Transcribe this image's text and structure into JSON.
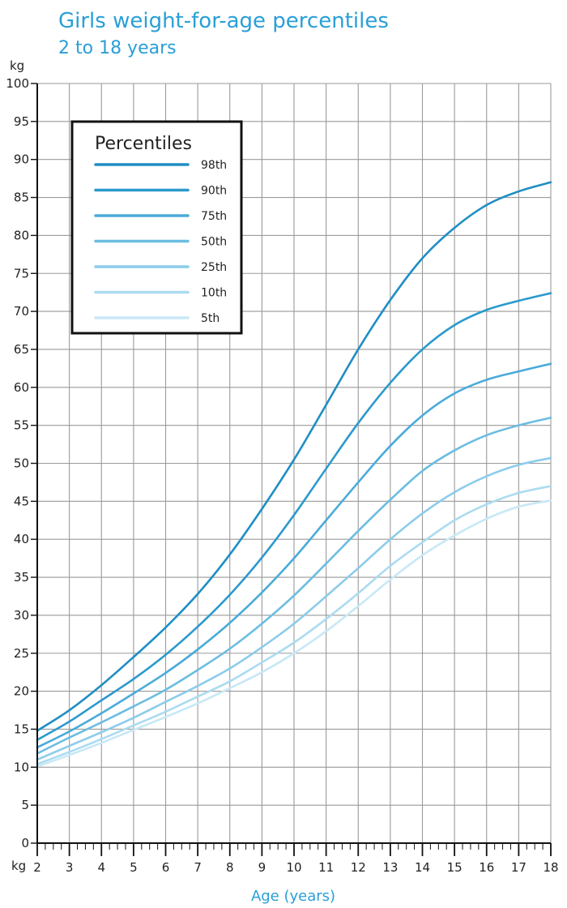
{
  "chart_data": {
    "type": "line",
    "title": "Girls weight-for-age percentiles",
    "subtitle": "2 to 18 years",
    "xlabel": "Age (years)",
    "ylabel": "kg",
    "ylabel_bottom": "kg",
    "xlim": [
      2,
      18
    ],
    "ylim": [
      0,
      100
    ],
    "x_ticks": [
      2,
      3,
      4,
      5,
      6,
      7,
      8,
      9,
      10,
      11,
      12,
      13,
      14,
      15,
      16,
      17,
      18
    ],
    "y_ticks": [
      0,
      5,
      10,
      15,
      20,
      25,
      30,
      35,
      40,
      45,
      50,
      55,
      60,
      65,
      70,
      75,
      80,
      85,
      90,
      95,
      100
    ],
    "grid": true,
    "legend": {
      "title": "Percentiles",
      "position": "top-left"
    },
    "x": [
      2,
      3,
      4,
      5,
      6,
      7,
      8,
      9,
      10,
      11,
      12,
      13,
      14,
      15,
      16,
      17,
      18
    ],
    "series": [
      {
        "name": "98th",
        "color": "#1f8ec4",
        "values": [
          14.8,
          17.5,
          20.8,
          24.5,
          28.4,
          32.8,
          38.0,
          44.0,
          50.5,
          57.7,
          65.0,
          71.5,
          77.0,
          81.0,
          84.0,
          85.8,
          87.0
        ]
      },
      {
        "name": "90th",
        "color": "#2b99cd",
        "values": [
          13.6,
          16.0,
          18.8,
          21.6,
          24.8,
          28.5,
          32.7,
          37.6,
          43.2,
          49.3,
          55.3,
          60.6,
          65.0,
          68.2,
          70.2,
          71.4,
          72.4
        ]
      },
      {
        "name": "75th",
        "color": "#4aabd9",
        "values": [
          12.6,
          14.7,
          17.1,
          19.7,
          22.4,
          25.5,
          29.0,
          33.0,
          37.5,
          42.5,
          47.5,
          52.3,
          56.3,
          59.2,
          61.0,
          62.1,
          63.1
        ]
      },
      {
        "name": "50th",
        "color": "#6bbde2",
        "values": [
          11.8,
          13.9,
          15.9,
          18.0,
          20.2,
          22.8,
          25.6,
          28.9,
          32.6,
          36.8,
          41.1,
          45.2,
          49.0,
          51.7,
          53.7,
          55.0,
          56.0
        ]
      },
      {
        "name": "25th",
        "color": "#8ccceb",
        "values": [
          11.0,
          12.8,
          14.6,
          16.5,
          18.6,
          20.7,
          23.0,
          25.8,
          28.9,
          32.5,
          36.2,
          40.0,
          43.4,
          46.2,
          48.3,
          49.8,
          50.7
        ]
      },
      {
        "name": "10th",
        "color": "#abdbf1",
        "values": [
          10.4,
          12.0,
          13.7,
          15.5,
          17.3,
          19.3,
          21.3,
          23.8,
          26.4,
          29.5,
          32.9,
          36.5,
          39.6,
          42.5,
          44.6,
          46.1,
          47.0
        ]
      },
      {
        "name": "5th",
        "color": "#c8e8f6",
        "values": [
          10.1,
          11.6,
          13.2,
          14.9,
          16.6,
          18.4,
          20.4,
          22.5,
          25.0,
          27.9,
          31.2,
          34.7,
          37.9,
          40.5,
          42.7,
          44.3,
          45.1
        ]
      }
    ]
  }
}
